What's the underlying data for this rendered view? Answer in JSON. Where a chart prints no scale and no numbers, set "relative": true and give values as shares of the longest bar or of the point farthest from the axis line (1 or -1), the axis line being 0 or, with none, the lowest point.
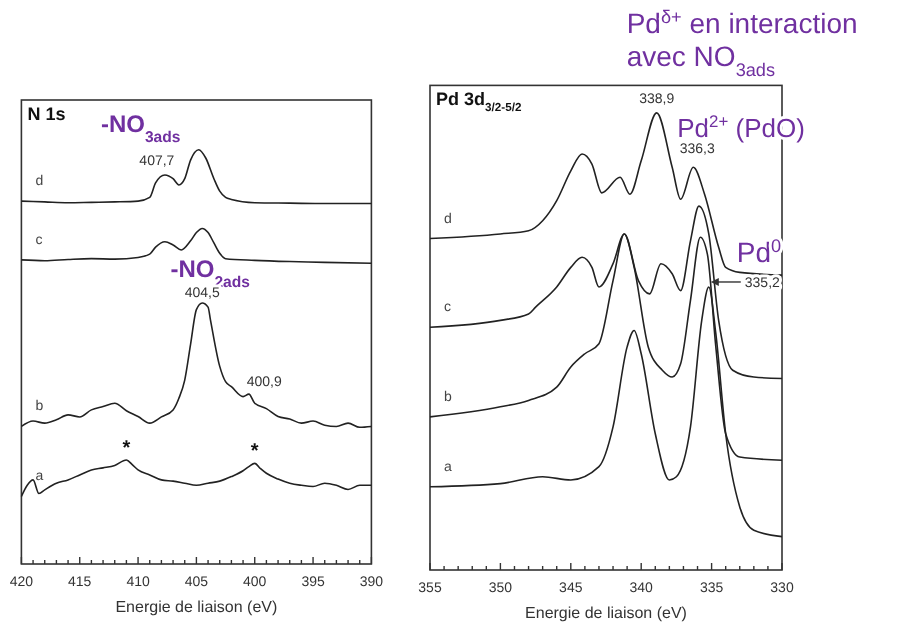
{
  "chart_data": [
    {
      "type": "line",
      "title": "N 1s",
      "xlabel": "Energie de liaison (eV)",
      "relative": true,
      "legend": false,
      "grid": false,
      "xlim": [
        420,
        390
      ],
      "xticks": [
        420,
        {
          "value": 419,
          "label": null
        },
        {
          "value": 418,
          "label": null
        },
        {
          "value": 417,
          "label": null
        },
        {
          "value": 416,
          "label": null
        },
        415,
        {
          "value": 414,
          "label": null
        },
        {
          "value": 413,
          "label": null
        },
        {
          "value": 412,
          "label": null
        },
        {
          "value": 411,
          "label": null
        },
        410,
        {
          "value": 409,
          "label": null
        },
        {
          "value": 408,
          "label": null
        },
        {
          "value": 407,
          "label": null
        },
        {
          "value": 406,
          "label": null
        },
        405,
        {
          "value": 404,
          "label": null
        },
        {
          "value": 403,
          "label": null
        },
        {
          "value": 402,
          "label": null
        },
        {
          "value": 401,
          "label": null
        },
        400,
        {
          "value": 399,
          "label": null
        },
        {
          "value": 398,
          "label": null
        },
        {
          "value": 397,
          "label": null
        },
        {
          "value": 396,
          "label": null
        },
        395,
        {
          "value": 394,
          "label": null
        },
        {
          "value": 393,
          "label": null
        },
        {
          "value": 392,
          "label": null
        },
        {
          "value": 391,
          "label": null
        },
        390
      ],
      "series": [
        {
          "name": "a",
          "color": "#222222",
          "x": [
            420,
            419.5,
            419,
            418.5,
            418,
            417,
            416,
            415,
            414,
            413,
            412,
            411,
            410.5,
            410,
            409,
            408,
            407,
            406,
            405,
            404,
            403,
            402,
            401,
            400.5,
            400,
            399.5,
            399,
            398,
            397,
            396,
            395,
            394,
            393,
            392,
            391,
            390
          ],
          "values": [
            0.163,
            0.19,
            0.203,
            0.17,
            0.179,
            0.195,
            0.203,
            0.215,
            0.227,
            0.232,
            0.238,
            0.251,
            0.24,
            0.227,
            0.215,
            0.203,
            0.2,
            0.195,
            0.19,
            0.195,
            0.2,
            0.211,
            0.225,
            0.235,
            0.243,
            0.23,
            0.219,
            0.205,
            0.195,
            0.19,
            0.187,
            0.195,
            0.19,
            0.18,
            0.19,
            0.19
          ]
        },
        {
          "name": "b",
          "color": "#222222",
          "x": [
            420,
            419,
            418,
            417,
            416,
            415,
            414,
            413,
            412,
            411,
            410,
            409,
            408,
            407,
            406.5,
            406,
            405.5,
            405,
            404.5,
            404,
            403.8,
            403,
            402.5,
            402,
            401,
            400.5,
            400,
            399,
            398,
            397,
            396,
            395,
            394,
            393,
            392,
            391,
            390
          ],
          "values": [
            0.332,
            0.345,
            0.34,
            0.348,
            0.36,
            0.355,
            0.372,
            0.38,
            0.388,
            0.37,
            0.356,
            0.34,
            0.355,
            0.372,
            0.4,
            0.444,
            0.53,
            0.614,
            0.63,
            0.62,
            0.59,
            0.477,
            0.44,
            0.428,
            0.404,
            0.41,
            0.388,
            0.375,
            0.356,
            0.35,
            0.34,
            0.345,
            0.335,
            0.332,
            0.34,
            0.33,
            0.332
          ]
        },
        {
          "name": "c",
          "color": "#222222",
          "x": [
            420,
            418,
            416,
            414,
            412,
            410,
            409,
            408.5,
            407.7,
            407,
            406.3,
            405.5,
            405,
            404.5,
            404,
            403.5,
            403,
            402.5,
            400,
            397,
            394,
            390
          ],
          "values": [
            0.734,
            0.732,
            0.735,
            0.737,
            0.736,
            0.74,
            0.748,
            0.765,
            0.778,
            0.77,
            0.758,
            0.78,
            0.8,
            0.81,
            0.8,
            0.775,
            0.75,
            0.737,
            0.733,
            0.73,
            0.728,
            0.726
          ]
        },
        {
          "name": "d",
          "color": "#222222",
          "x": [
            420,
            418,
            416,
            414,
            412,
            410,
            409,
            408.5,
            407.7,
            407,
            406.5,
            406,
            405.5,
            404.8,
            404.2,
            403.5,
            403,
            402.5,
            402,
            400,
            397,
            394,
            390
          ],
          "values": [
            0.876,
            0.874,
            0.872,
            0.873,
            0.874,
            0.876,
            0.885,
            0.92,
            0.939,
            0.93,
            0.915,
            0.93,
            0.975,
            1.0,
            0.98,
            0.93,
            0.9,
            0.885,
            0.88,
            0.872,
            0.871,
            0.87,
            0.87
          ]
        }
      ],
      "annotations": [
        {
          "text": "-NO$_{3ads}$",
          "x": 404.8,
          "y": 1.0
        },
        {
          "text": "407,7",
          "x": 407.7,
          "y": 0.939
        },
        {
          "text": "-NO$_{2ads}$",
          "x": 404.5,
          "y": 0.63
        },
        {
          "text": "404,5",
          "x": 404.5,
          "y": 0.63
        },
        {
          "text": "400,9",
          "x": 400.9,
          "y": 0.41
        },
        {
          "text": "*",
          "x": 411,
          "y": 0.251
        },
        {
          "text": "*",
          "x": 400,
          "y": 0.243
        }
      ]
    },
    {
      "type": "line",
      "title": "Pd 3d$_{3/2-5/2}$",
      "xlabel": "Energie de liaison (eV)",
      "relative": true,
      "legend": false,
      "grid": false,
      "xlim": [
        355,
        330
      ],
      "xticks": [
        355,
        {
          "value": 354,
          "label": null
        },
        {
          "value": 353,
          "label": null
        },
        {
          "value": 352,
          "label": null
        },
        {
          "value": 351,
          "label": null
        },
        350,
        {
          "value": 349,
          "label": null
        },
        {
          "value": 348,
          "label": null
        },
        {
          "value": 347,
          "label": null
        },
        {
          "value": 346,
          "label": null
        },
        345,
        {
          "value": 344,
          "label": null
        },
        {
          "value": 343,
          "label": null
        },
        {
          "value": 342,
          "label": null
        },
        {
          "value": 341,
          "label": null
        },
        340,
        {
          "value": 339,
          "label": null
        },
        {
          "value": 338,
          "label": null
        },
        {
          "value": 337,
          "label": null
        },
        {
          "value": 336,
          "label": null
        },
        335,
        {
          "value": 334,
          "label": null
        },
        {
          "value": 333,
          "label": null
        },
        {
          "value": 332,
          "label": null
        },
        {
          "value": 331,
          "label": null
        },
        330
      ],
      "series": [
        {
          "name": "a",
          "color": "#222222",
          "x": [
            355,
            350,
            347,
            345,
            343,
            342,
            341,
            340.5,
            340,
            339,
            338,
            337.5,
            336.5,
            335.7,
            335.2,
            334.7,
            334,
            333,
            332,
            330
          ],
          "values": [
            0.182,
            0.189,
            0.204,
            0.197,
            0.226,
            0.313,
            0.488,
            0.524,
            0.473,
            0.298,
            0.197,
            0.204,
            0.313,
            0.546,
            0.619,
            0.517,
            0.298,
            0.138,
            0.087,
            0.073
          ]
        },
        {
          "name": "b",
          "color": "#222222",
          "x": [
            355,
            350,
            348,
            346,
            345,
            344,
            343,
            342,
            341.2,
            340.5,
            339.5,
            338.5,
            337.8,
            337.2,
            336.5,
            335.8,
            335.3,
            334.7,
            334,
            333,
            330
          ],
          "values": [
            0.335,
            0.357,
            0.371,
            0.4,
            0.444,
            0.473,
            0.495,
            0.633,
            0.735,
            0.662,
            0.488,
            0.437,
            0.422,
            0.451,
            0.59,
            0.728,
            0.691,
            0.488,
            0.298,
            0.247,
            0.24
          ]
        },
        {
          "name": "c",
          "color": "#222222",
          "x": [
            355,
            350,
            348,
            347.5,
            346,
            345,
            344.2,
            343.5,
            343,
            342,
            341.2,
            340.2,
            339.4,
            338.6,
            337.8,
            337.2,
            336.5,
            335.9,
            335.2,
            334.5,
            333.5,
            332,
            330
          ],
          "values": [
            0.531,
            0.546,
            0.56,
            0.575,
            0.619,
            0.662,
            0.684,
            0.662,
            0.619,
            0.67,
            0.735,
            0.633,
            0.604,
            0.67,
            0.648,
            0.611,
            0.72,
            0.796,
            0.735,
            0.546,
            0.437,
            0.422,
            0.419
          ]
        },
        {
          "name": "d",
          "color": "#222222",
          "x": [
            355,
            350,
            348,
            347,
            346,
            345,
            344.2,
            343.5,
            342.8,
            341.5,
            340.8,
            340,
            338.9,
            337.8,
            337.2,
            336.3,
            335.5,
            334.5,
            334,
            333,
            330
          ],
          "values": [
            0.725,
            0.735,
            0.742,
            0.764,
            0.808,
            0.873,
            0.91,
            0.888,
            0.825,
            0.859,
            0.822,
            0.895,
            1.0,
            0.881,
            0.811,
            0.881,
            0.822,
            0.706,
            0.662,
            0.651,
            0.645
          ]
        }
      ],
      "annotations": [
        {
          "text": "Pd$^{δ+}$ en interaction avec NO$_{3ads}$",
          "x": 338.9,
          "y": 1.0
        },
        {
          "text": "338,9",
          "x": 338.9,
          "y": 1.0
        },
        {
          "text": "Pd$^{2+}$ (PdO)",
          "x": 336.3,
          "y": 0.881
        },
        {
          "text": "336,3",
          "x": 336.3,
          "y": 0.881
        },
        {
          "text": "Pd$^{0}$",
          "x": 335.2,
          "y": 0.63
        },
        {
          "text": "335,2",
          "x": 335.2,
          "y": 0.63
        }
      ]
    }
  ]
}
